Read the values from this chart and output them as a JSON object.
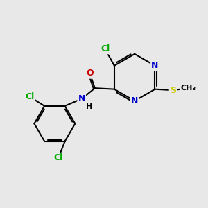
{
  "background_color": "#e8e8e8",
  "atom_colors": {
    "C": "#000000",
    "N": "#0000cc",
    "O": "#cc0000",
    "S": "#cccc00",
    "Cl": "#00aa00",
    "H": "#000000"
  },
  "font_size": 9,
  "bond_color": "#000000",
  "bond_width": 1.5
}
